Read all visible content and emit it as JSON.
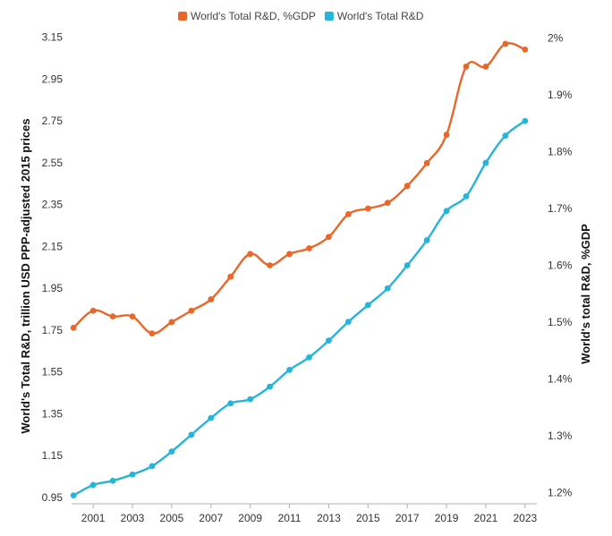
{
  "chart_data": {
    "type": "line",
    "title": "",
    "x": [
      2000,
      2001,
      2002,
      2003,
      2004,
      2005,
      2006,
      2007,
      2008,
      2009,
      2010,
      2011,
      2012,
      2013,
      2014,
      2015,
      2016,
      2017,
      2018,
      2019,
      2020,
      2021,
      2022,
      2023
    ],
    "x_ticks": [
      "2001",
      "2003",
      "2005",
      "2007",
      "2009",
      "2011",
      "2013",
      "2015",
      "2017",
      "2019",
      "2021",
      "2023"
    ],
    "ylabel_left": "World's Total R&D, trillion USD PPP-adjusted 2015 prices",
    "ylabel_right": "World's total R&D, %GDP",
    "ylim_left": [
      0.92,
      3.2
    ],
    "yticks_left": [
      "0.95",
      "1.15",
      "1.35",
      "1.55",
      "1.75",
      "1.95",
      "2.15",
      "2.35",
      "2.55",
      "2.75",
      "2.95",
      "3.15"
    ],
    "ylim_right": [
      1.18,
      2.02
    ],
    "yticks_right": [
      "1.2%",
      "1.3%",
      "1.4%",
      "1.5%",
      "1.6%",
      "1.7%",
      "1.8%",
      "1.9%",
      "2%"
    ],
    "legend_position": "top-center",
    "grid": false,
    "series": [
      {
        "name": "World's Total R&D, %GDP",
        "axis": "right",
        "color": "#e8672a",
        "values": [
          1.49,
          1.52,
          1.51,
          1.51,
          1.48,
          1.5,
          1.52,
          1.54,
          1.58,
          1.62,
          1.6,
          1.62,
          1.63,
          1.65,
          1.69,
          1.7,
          1.71,
          1.74,
          1.78,
          1.83,
          1.95,
          1.95,
          1.99,
          1.98
        ]
      },
      {
        "name": "World's Total R&D",
        "axis": "left",
        "color": "#26b5d9",
        "values": [
          0.96,
          1.01,
          1.03,
          1.06,
          1.1,
          1.17,
          1.25,
          1.33,
          1.4,
          1.42,
          1.48,
          1.56,
          1.62,
          1.7,
          1.79,
          1.87,
          1.95,
          2.06,
          2.18,
          2.32,
          2.39,
          2.55,
          2.68,
          2.75
        ]
      }
    ]
  }
}
